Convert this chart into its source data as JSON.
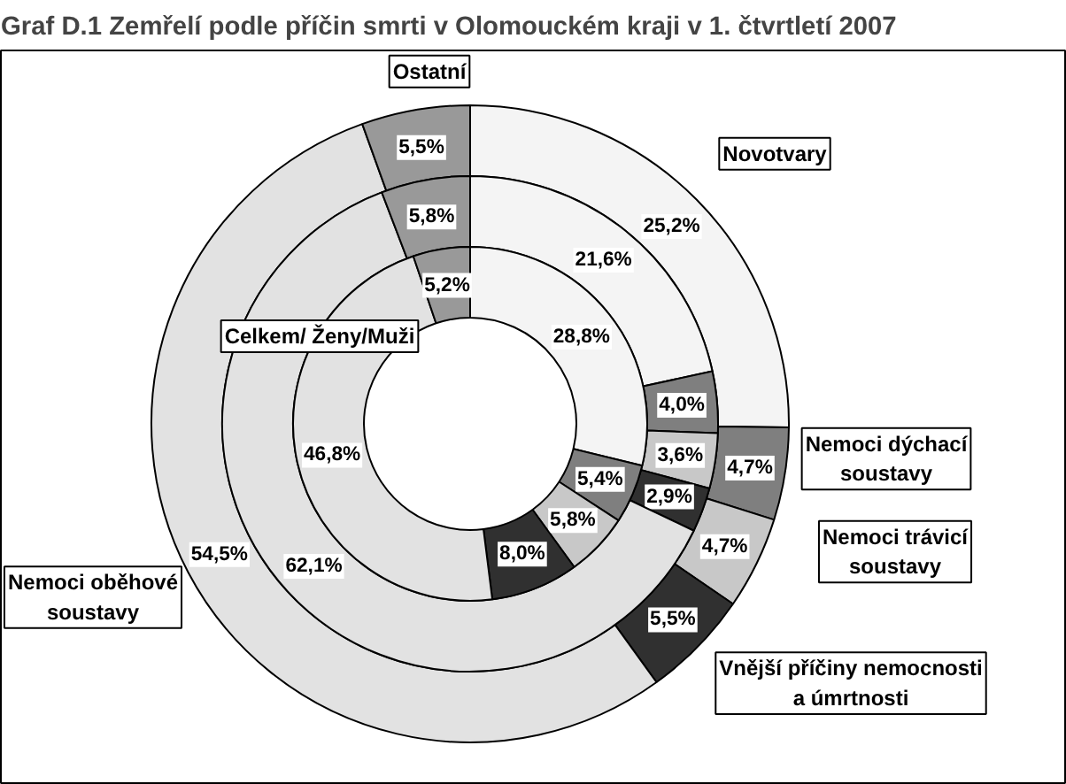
{
  "chart_data": {
    "type": "donut",
    "title": "Graf D.1 Zemřelí podle příčin smrti v Olomouckém kraji v 1. čtvrtletí 2007",
    "categories": [
      "Novotvary",
      "Nemoci dýchací soustavy",
      "Nemoci trávicí soustavy",
      "Vnější příčiny nemocnosti a úmrtnosti",
      "Nemoci oběhové soustavy",
      "Ostatní"
    ],
    "colors": [
      "#f4f4f4",
      "#7f7f7f",
      "#c8c8c8",
      "#303030",
      "#e2e2e2",
      "#999999"
    ],
    "series": [
      {
        "values": [
          25.2,
          4.7,
          4.7,
          5.5,
          54.5,
          5.5
        ],
        "value_labels": [
          "25,2%",
          "4,7%",
          "4,7%",
          "5,5%",
          "54,5%",
          "5,5%"
        ]
      },
      {
        "values": [
          21.6,
          4.0,
          3.6,
          2.9,
          62.1,
          5.8
        ],
        "value_labels": [
          "21,6%",
          "4,0%",
          "3,6%",
          "2,9%",
          "62,1%",
          "5,8%"
        ]
      },
      {
        "values": [
          28.8,
          5.4,
          5.8,
          8.0,
          46.8,
          5.2
        ],
        "value_labels": [
          "28,8%",
          "5,4%",
          "5,8%",
          "8,0%",
          "46,8%",
          "5,2%"
        ]
      }
    ],
    "annotations": [
      "Celkem/ Ženy/Muži"
    ]
  }
}
